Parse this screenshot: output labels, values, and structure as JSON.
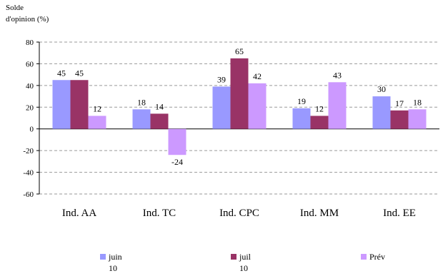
{
  "chart_data": {
    "type": "bar",
    "ylabel_line1": "Solde",
    "ylabel_line2": "d'opinion (%)",
    "ylim": [
      -60,
      80
    ],
    "yticks": [
      -60,
      -40,
      -20,
      0,
      20,
      40,
      60,
      80
    ],
    "grid": true,
    "legend_position": "bottom",
    "categories": [
      "Ind. AA",
      "Ind. TC",
      "Ind. CPC",
      "Ind. MM",
      "Ind. EE"
    ],
    "series": [
      {
        "name": "juin 10",
        "values": [
          45,
          18,
          39,
          19,
          30
        ],
        "color": "#9999ff"
      },
      {
        "name": "juil 10",
        "values": [
          45,
          14,
          65,
          12,
          17
        ],
        "color": "#993366"
      },
      {
        "name": "Prév",
        "values": [
          12,
          -24,
          42,
          43,
          18
        ],
        "color": "#cc99ff"
      }
    ]
  }
}
